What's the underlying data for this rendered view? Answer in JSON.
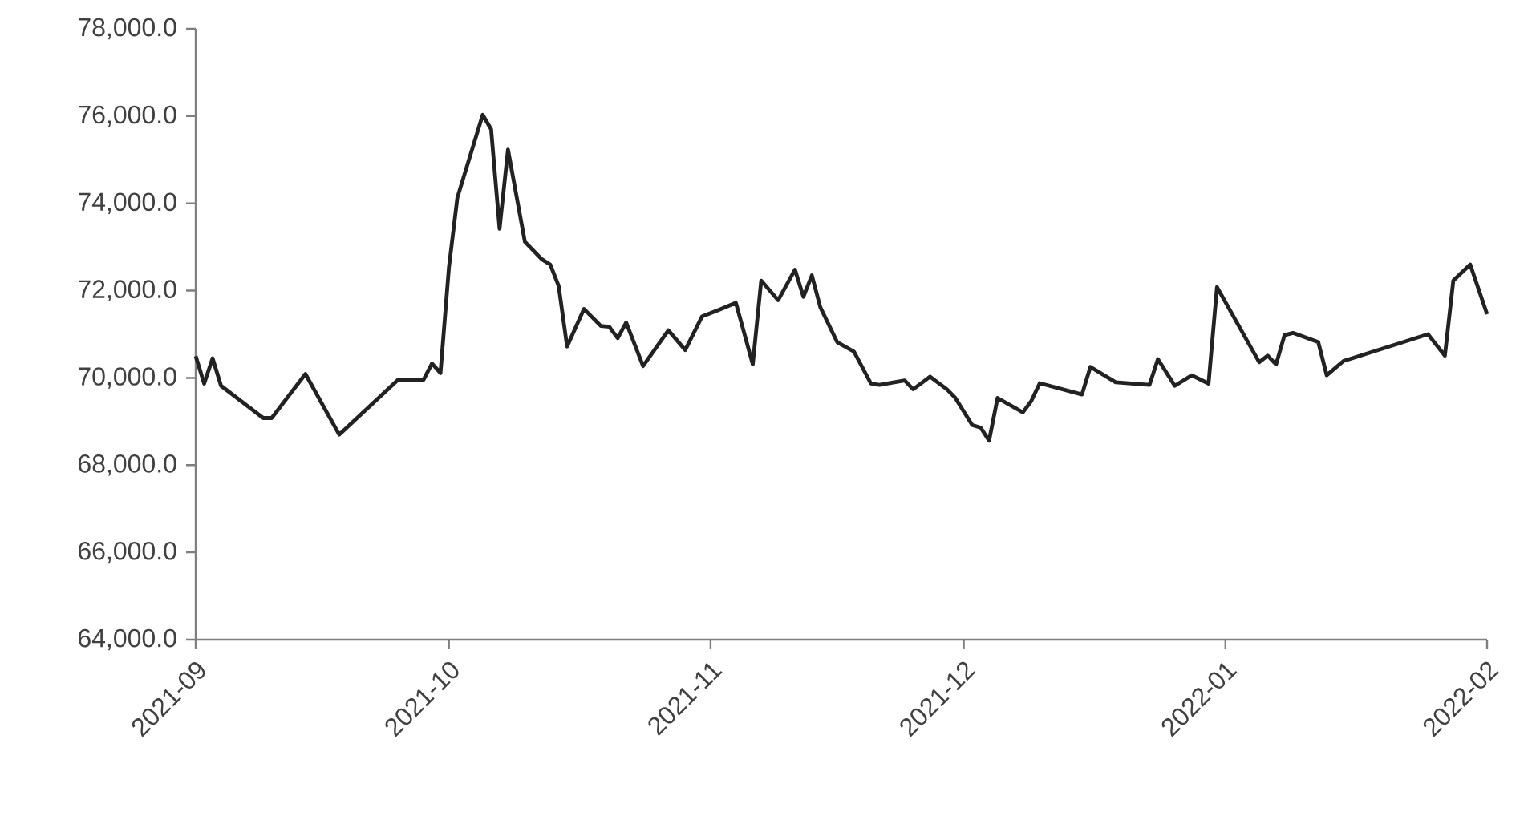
{
  "chart_data": {
    "type": "line",
    "color": "#222222",
    "x": [
      "2021-09-01",
      "2021-09-02",
      "2021-09-03",
      "2021-09-04",
      "2021-09-09",
      "2021-09-10",
      "2021-09-14",
      "2021-09-18",
      "2021-09-25",
      "2021-09-28",
      "2021-09-29",
      "2021-09-30",
      "2021-10-01",
      "2021-10-02",
      "2021-10-05",
      "2021-10-06",
      "2021-10-07",
      "2021-10-08",
      "2021-10-10",
      "2021-10-12",
      "2021-10-13",
      "2021-10-14",
      "2021-10-15",
      "2021-10-17",
      "2021-10-19",
      "2021-10-20",
      "2021-10-21",
      "2021-10-22",
      "2021-10-24",
      "2021-10-27",
      "2021-10-29",
      "2021-10-31",
      "2021-11-02",
      "2021-11-04",
      "2021-11-06",
      "2021-11-07",
      "2021-11-09",
      "2021-11-11",
      "2021-11-12",
      "2021-11-13",
      "2021-11-14",
      "2021-11-16",
      "2021-11-18",
      "2021-11-20",
      "2021-11-21",
      "2021-11-24",
      "2021-11-25",
      "2021-11-27",
      "2021-11-29",
      "2021-11-30",
      "2021-12-02",
      "2021-12-03",
      "2021-12-04",
      "2021-12-05",
      "2021-12-08",
      "2021-12-09",
      "2021-12-10",
      "2021-12-15",
      "2021-12-16",
      "2021-12-19",
      "2021-12-23",
      "2021-12-24",
      "2021-12-26",
      "2021-12-28",
      "2021-12-30",
      "2021-12-31",
      "2022-01-05",
      "2022-01-06",
      "2022-01-07",
      "2022-01-08",
      "2022-01-09",
      "2022-01-12",
      "2022-01-13",
      "2022-01-15",
      "2022-01-16",
      "2022-01-25",
      "2022-01-27",
      "2022-01-28",
      "2022-01-30",
      "2022-02-01"
    ],
    "values": [
      70500,
      69870,
      70450,
      69820,
      69080,
      69080,
      70090,
      68700,
      69960,
      69960,
      70330,
      70110,
      72530,
      74130,
      76030,
      75700,
      73420,
      75230,
      73120,
      72720,
      72600,
      72110,
      70720,
      71580,
      71190,
      71170,
      70910,
      71270,
      70270,
      71090,
      70640,
      71410,
      71560,
      71720,
      70310,
      72230,
      71780,
      72480,
      71860,
      72350,
      71620,
      70820,
      70600,
      69870,
      69840,
      69940,
      69740,
      70030,
      69740,
      69540,
      68920,
      68860,
      68560,
      69540,
      69210,
      69470,
      69880,
      69620,
      70250,
      69900,
      69840,
      70430,
      69820,
      70060,
      69870,
      72080,
      70360,
      70510,
      70310,
      70980,
      71030,
      70820,
      70060,
      70390,
      70450,
      71000,
      70510,
      72230,
      72600,
      71460
    ],
    "xlim": [
      "2021-09",
      "2022-02"
    ],
    "xticks": [
      "2021-09",
      "2021-10",
      "2021-11",
      "2021-12",
      "2022-01",
      "2022-02"
    ],
    "ylim": [
      64000,
      78000
    ],
    "yticks": [
      {
        "value": 64000,
        "label": "64,000.0"
      },
      {
        "value": 66000,
        "label": "66,000.0"
      },
      {
        "value": 68000,
        "label": "68,000.0"
      },
      {
        "value": 70000,
        "label": "70,000.0"
      },
      {
        "value": 72000,
        "label": "72,000.0"
      },
      {
        "value": 74000,
        "label": "74,000.0"
      },
      {
        "value": 76000,
        "label": "76,000.0"
      },
      {
        "value": 78000,
        "label": "78,000.0"
      }
    ]
  }
}
